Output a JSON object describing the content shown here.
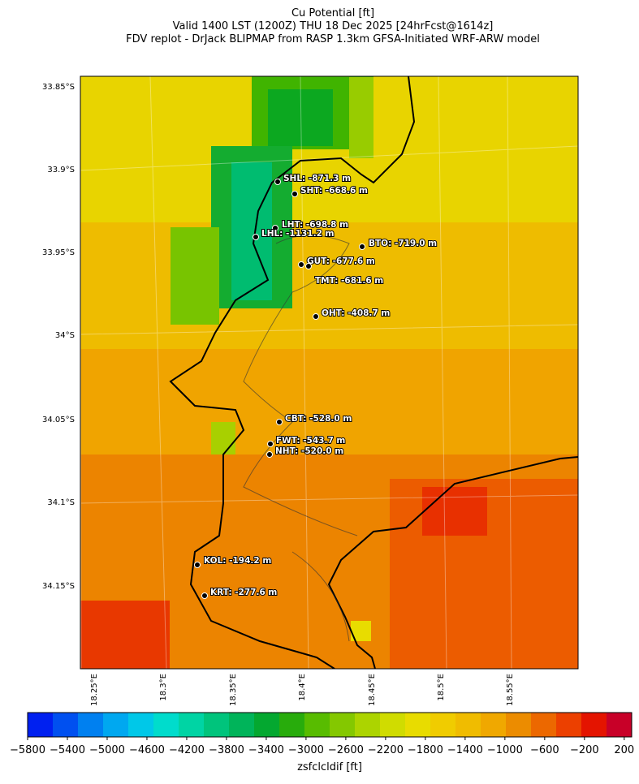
{
  "header": {
    "lines": [
      "Cu Potential [ft]",
      "Valid 1400 LST (1200Z) THU 18 Dec 2025 [24hrFcst@1614z]",
      "FDV replot - DrJack BLIPMAP from RASP 1.3km GFSA-Initiated WRF-ARW model"
    ]
  },
  "map": {
    "lat_labels": [
      "33.85°S",
      "33.9°S",
      "33.95°S",
      "34°S",
      "34.05°S",
      "34.1°S",
      "34.15°S"
    ],
    "lon_labels": [
      "18.25°E",
      "18.3°E",
      "18.35°E",
      "18.4°E",
      "18.45°E",
      "18.5°E",
      "18.55°E"
    ],
    "stations": [
      {
        "label": "SHL: -871.3 m"
      },
      {
        "label": "SHT: -668.6 m"
      },
      {
        "label": "LHT: -698.8 m"
      },
      {
        "label": "LHL: -1131.2 m"
      },
      {
        "label": "BTO: -719.0 m"
      },
      {
        "label": "GUT: -677.6 m"
      },
      {
        "label": "TMT: -681.6 m"
      },
      {
        "label": "OHT: -408.7 m"
      },
      {
        "label": "CBT: -528.0 m"
      },
      {
        "label": "FWT: -543.7 m"
      },
      {
        "label": "NHT: -520.0 m"
      },
      {
        "label": "KOL: -194.2 m"
      },
      {
        "label": "KRT: -277.6 m"
      }
    ]
  },
  "colorbar": {
    "label": "zsfclcldif [ft]",
    "range": [
      -5800,
      275
    ],
    "ticks": [
      {
        "value": -5800,
        "label": "−5800"
      },
      {
        "value": -5400,
        "label": "−5400"
      },
      {
        "value": -5000,
        "label": "−5000"
      },
      {
        "value": -4600,
        "label": "−4600"
      },
      {
        "value": -4200,
        "label": "−4200"
      },
      {
        "value": -3800,
        "label": "−3800"
      },
      {
        "value": -3400,
        "label": "−3400"
      },
      {
        "value": -3000,
        "label": "−3000"
      },
      {
        "value": -2600,
        "label": "−2600"
      },
      {
        "value": -2200,
        "label": "−2200"
      },
      {
        "value": -1800,
        "label": "−1800"
      },
      {
        "value": -1400,
        "label": "−1400"
      },
      {
        "value": -1000,
        "label": "−1000"
      },
      {
        "value": -600,
        "label": "−600"
      },
      {
        "value": -200,
        "label": "−200"
      },
      200
    ],
    "colors": [
      "#0020f0",
      "#0050f0",
      "#0080f0",
      "#00a8f0",
      "#00c8e8",
      "#00dccc",
      "#00d4a4",
      "#00c47c",
      "#00b45a",
      "#04a830",
      "#28ac0c",
      "#58bc00",
      "#84c800",
      "#acd400",
      "#d0dc00",
      "#e8dc00",
      "#f0cc00",
      "#f0bc00",
      "#f0a800",
      "#ec8c00",
      "#ec6800",
      "#ec4000",
      "#e41400",
      "#c80028"
    ]
  }
}
